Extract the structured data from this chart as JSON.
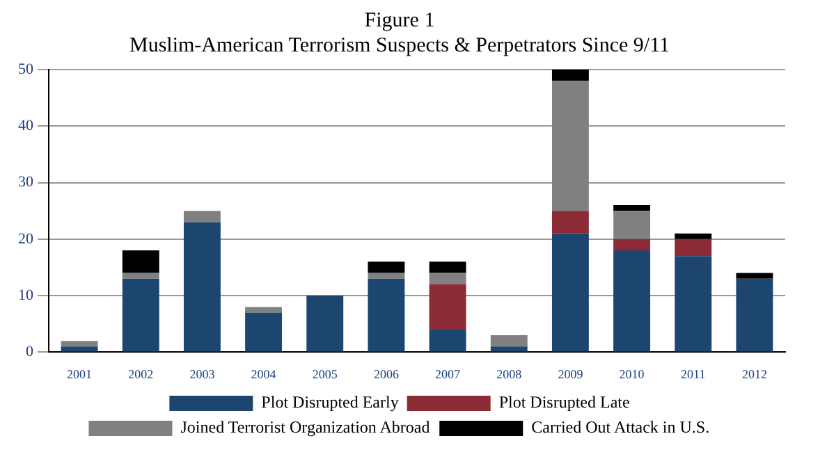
{
  "chart_data": {
    "type": "bar",
    "title": "Figure 1",
    "subtitle": "Muslim-American Terrorism Suspects & Perpetrators Since 9/11",
    "stacked": true,
    "categories": [
      "2001",
      "2002",
      "2003",
      "2004",
      "2005",
      "2006",
      "2007",
      "2008",
      "2009",
      "2010",
      "2011",
      "2012"
    ],
    "series": [
      {
        "name": "Plot Disrupted Early",
        "color": "#1c4570",
        "values": [
          1,
          13,
          23,
          7,
          10,
          13,
          4,
          1,
          21,
          18,
          17,
          13
        ]
      },
      {
        "name": "Plot Disrupted Late",
        "color": "#8c2a36",
        "values": [
          0,
          0,
          0,
          0,
          0,
          0,
          8,
          0,
          4,
          2,
          3,
          0
        ]
      },
      {
        "name": "Joined Terrorist Organization Abroad",
        "color": "#808080",
        "values": [
          1,
          1,
          2,
          1,
          0,
          1,
          2,
          2,
          23,
          5,
          0,
          0
        ]
      },
      {
        "name": "Carried Out Attack in U.S.",
        "color": "#000000",
        "values": [
          0,
          4,
          0,
          0,
          0,
          2,
          2,
          0,
          2,
          1,
          1,
          1
        ]
      }
    ],
    "ylim": [
      0,
      50
    ],
    "yticks": [
      0,
      10,
      20,
      30,
      40,
      50
    ],
    "grid": "y",
    "legend": "bottom"
  }
}
